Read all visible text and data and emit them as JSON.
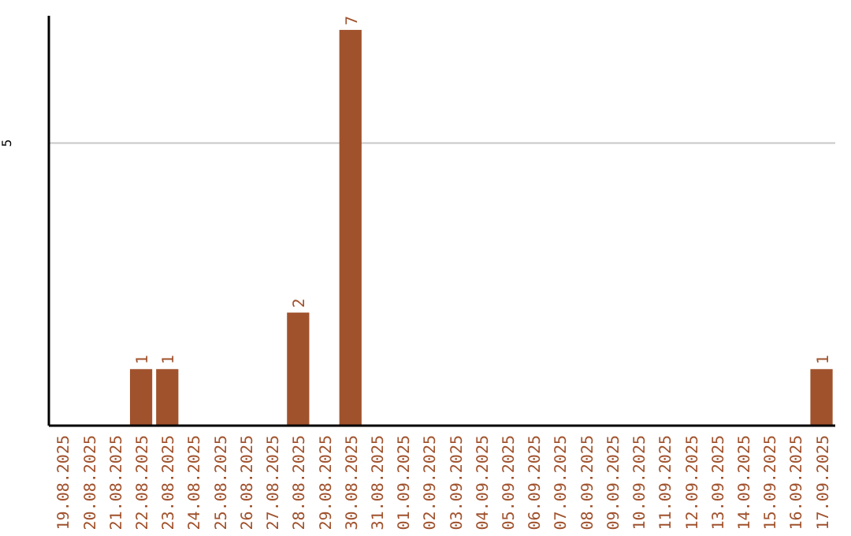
{
  "chart_data": {
    "type": "bar",
    "categories": [
      "19.08.2025",
      "20.08.2025",
      "21.08.2025",
      "22.08.2025",
      "23.08.2025",
      "24.08.2025",
      "25.08.2025",
      "26.08.2025",
      "27.08.2025",
      "28.08.2025",
      "29.08.2025",
      "30.08.2025",
      "31.08.2025",
      "01.09.2025",
      "02.09.2025",
      "03.09.2025",
      "04.09.2025",
      "05.09.2025",
      "06.09.2025",
      "07.09.2025",
      "08.09.2025",
      "09.09.2025",
      "10.09.2025",
      "11.09.2025",
      "12.09.2025",
      "13.09.2025",
      "14.09.2025",
      "15.09.2025",
      "16.09.2025",
      "17.09.2025"
    ],
    "values": [
      0,
      0,
      0,
      1,
      1,
      0,
      0,
      0,
      0,
      2,
      0,
      7,
      0,
      0,
      0,
      0,
      0,
      0,
      0,
      0,
      0,
      0,
      0,
      0,
      0,
      0,
      0,
      0,
      0,
      1
    ],
    "value_labels": [
      null,
      null,
      null,
      "1",
      "1",
      null,
      null,
      null,
      null,
      "2",
      null,
      "7",
      null,
      null,
      null,
      null,
      null,
      null,
      null,
      null,
      null,
      null,
      null,
      null,
      null,
      null,
      null,
      null,
      null,
      "1"
    ],
    "color": "#a0522d",
    "ylim": [
      0,
      7.25
    ],
    "yticks": [
      5
    ],
    "grid": "y"
  }
}
